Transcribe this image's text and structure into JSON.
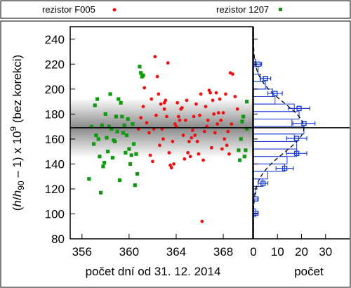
{
  "chart_data": [
    {
      "type": "scatter",
      "xlabel": "počet dní od 31. 12. 2014",
      "ylabel": "(h/h90 – 1) x 10^9  (bez korekci)",
      "ylabel_parts": [
        "(",
        "h",
        "/",
        "h",
        "90",
        " – 1) x 10",
        "9",
        "  (bez korekci)"
      ],
      "xlim": [
        355,
        370.5
      ],
      "ylim": [
        80,
        250
      ],
      "xticks": [
        "356",
        "360",
        "364",
        "368"
      ],
      "yticks": [
        "80",
        "100",
        "120",
        "140",
        "160",
        "180",
        "200",
        "220",
        "240"
      ],
      "mean_line": 169,
      "band": {
        "center": 169,
        "sigma": 14
      },
      "series": [
        {
          "name": "rezistor F005",
          "color": "#ee1111",
          "marker": "circle",
          "points": [
            [
              360.8,
              168
            ],
            [
              361.0,
              177
            ],
            [
              361.2,
              186
            ],
            [
              361.3,
              201
            ],
            [
              361.5,
              173
            ],
            [
              361.7,
              165
            ],
            [
              361.8,
              147
            ],
            [
              361.9,
              192
            ],
            [
              362.1,
              168
            ],
            [
              362.2,
              226
            ],
            [
              362.3,
              179
            ],
            [
              362.4,
              210
            ],
            [
              362.5,
              196
            ],
            [
              362.6,
              155
            ],
            [
              362.7,
              188
            ],
            [
              362.8,
              168
            ],
            [
              362.9,
              160
            ],
            [
              363.0,
              189
            ],
            [
              363.1,
              191
            ],
            [
              363.2,
              178
            ],
            [
              363.3,
              221
            ],
            [
              363.4,
              149
            ],
            [
              363.5,
              139
            ],
            [
              363.6,
              137
            ],
            [
              363.7,
              158
            ],
            [
              363.8,
              140
            ],
            [
              363.9,
              172
            ],
            [
              364.0,
              170
            ],
            [
              364.1,
              189
            ],
            [
              364.2,
              178
            ],
            [
              364.3,
              175
            ],
            [
              364.4,
              184
            ],
            [
              364.5,
              185
            ],
            [
              364.6,
              163
            ],
            [
              364.7,
              144
            ],
            [
              364.8,
              175
            ],
            [
              364.9,
              191
            ],
            [
              365.0,
              149
            ],
            [
              365.1,
              158
            ],
            [
              365.2,
              146
            ],
            [
              365.3,
              161
            ],
            [
              365.4,
              167
            ],
            [
              365.5,
              178
            ],
            [
              365.6,
              163
            ],
            [
              365.7,
              188
            ],
            [
              365.8,
              158
            ],
            [
              365.9,
              148
            ],
            [
              366.0,
              179
            ],
            [
              366.1,
              196
            ],
            [
              366.2,
              94
            ],
            [
              366.3,
              143
            ],
            [
              366.4,
              166
            ],
            [
              366.5,
              186
            ],
            [
              366.6,
              170
            ],
            [
              366.7,
              175
            ],
            [
              366.8,
              199
            ],
            [
              366.9,
              197
            ],
            [
              367.0,
              153
            ],
            [
              367.1,
              191
            ],
            [
              367.2,
              180
            ],
            [
              367.3,
              165
            ],
            [
              367.4,
              197
            ],
            [
              367.5,
              172
            ],
            [
              367.6,
              181
            ],
            [
              367.7,
              192
            ],
            [
              367.8,
              175
            ],
            [
              367.9,
              152
            ],
            [
              368.0,
              181
            ],
            [
              368.1,
              160
            ],
            [
              368.2,
              196
            ],
            [
              368.3,
              155
            ],
            [
              368.4,
              166
            ],
            [
              368.5,
              148
            ],
            [
              368.6,
              213
            ],
            [
              368.7,
              172
            ],
            [
              368.8,
              212
            ],
            [
              369.0,
              194
            ],
            [
              369.2,
              184
            ],
            [
              362.0,
              142
            ],
            [
              363.0,
              184
            ]
          ]
        },
        {
          "name": "rezistor 1207",
          "color": "#119911",
          "marker": "square",
          "points": [
            [
              356.6,
              128
            ],
            [
              356.8,
              170
            ],
            [
              357.0,
              156
            ],
            [
              357.1,
              187
            ],
            [
              357.2,
              163
            ],
            [
              357.3,
              192
            ],
            [
              357.4,
              160
            ],
            [
              357.5,
              146
            ],
            [
              357.6,
              117
            ],
            [
              357.7,
              171
            ],
            [
              357.8,
              138
            ],
            [
              357.9,
              141
            ],
            [
              358.0,
              180
            ],
            [
              358.1,
              161
            ],
            [
              358.2,
              150
            ],
            [
              358.3,
              170
            ],
            [
              358.4,
              196
            ],
            [
              358.5,
              168
            ],
            [
              358.6,
              145
            ],
            [
              358.7,
              159
            ],
            [
              358.8,
              158
            ],
            [
              358.9,
              178
            ],
            [
              359.0,
              166
            ],
            [
              359.1,
              192
            ],
            [
              359.2,
              127
            ],
            [
              359.3,
              189
            ],
            [
              359.4,
              178
            ],
            [
              359.5,
              165
            ],
            [
              359.6,
              171
            ],
            [
              359.7,
              149
            ],
            [
              359.8,
              163
            ],
            [
              359.9,
              176
            ],
            [
              360.0,
              152
            ],
            [
              360.1,
              140
            ],
            [
              360.2,
              147
            ],
            [
              360.3,
              172
            ],
            [
              360.4,
              156
            ],
            [
              360.5,
              123
            ],
            [
              360.6,
              148
            ],
            [
              360.7,
              132
            ],
            [
              361.0,
              213
            ],
            [
              361.1,
              210
            ],
            [
              361.2,
              211
            ],
            [
              360.9,
              218
            ],
            [
              369.5,
              160
            ],
            [
              369.6,
              174
            ],
            [
              369.7,
              178
            ],
            [
              369.8,
              146
            ],
            [
              369.9,
              151
            ],
            [
              370.0,
              190
            ],
            [
              370.0,
              168
            ],
            [
              369.4,
              143
            ],
            [
              369.3,
              151
            ]
          ]
        }
      ]
    },
    {
      "type": "histogram",
      "xlabel": "počet",
      "xlim": [
        0,
        40
      ],
      "xticks": [
        "0",
        "10",
        "20",
        "30"
      ],
      "ylim": [
        80,
        250
      ],
      "bin_width": 6,
      "bins_start": [
        98,
        104,
        110,
        116,
        122,
        128,
        134,
        140,
        146,
        152,
        158,
        164,
        170,
        176,
        182,
        188,
        194,
        200,
        206,
        212,
        218,
        224
      ],
      "counts": [
        1,
        0,
        0,
        1,
        4,
        6,
        13,
        14,
        18,
        18,
        17,
        21,
        16,
        19,
        17,
        9,
        8,
        5,
        3,
        2,
        1,
        0
      ],
      "points_with_errors": [
        {
          "y": 100.5,
          "count": 1,
          "err": 1
        },
        {
          "y": 112.0,
          "count": 1,
          "err": 1
        },
        {
          "y": 124.5,
          "count": 4,
          "err": 2
        },
        {
          "y": 136.5,
          "count": 13,
          "err": 3.6
        },
        {
          "y": 148.5,
          "count": 18,
          "err": 4.2
        },
        {
          "y": 160.5,
          "count": 18,
          "err": 4.2
        },
        {
          "y": 172.5,
          "count": 21,
          "err": 4.6
        },
        {
          "y": 184.5,
          "count": 19,
          "err": 4.4
        },
        {
          "y": 196.5,
          "count": 9,
          "err": 3
        },
        {
          "y": 208.5,
          "count": 5,
          "err": 2.2
        },
        {
          "y": 220.0,
          "count": 2,
          "err": 1.4
        }
      ],
      "fit": {
        "type": "gaussian",
        "mean": 169,
        "sigma": 20,
        "peak": 21
      }
    }
  ]
}
